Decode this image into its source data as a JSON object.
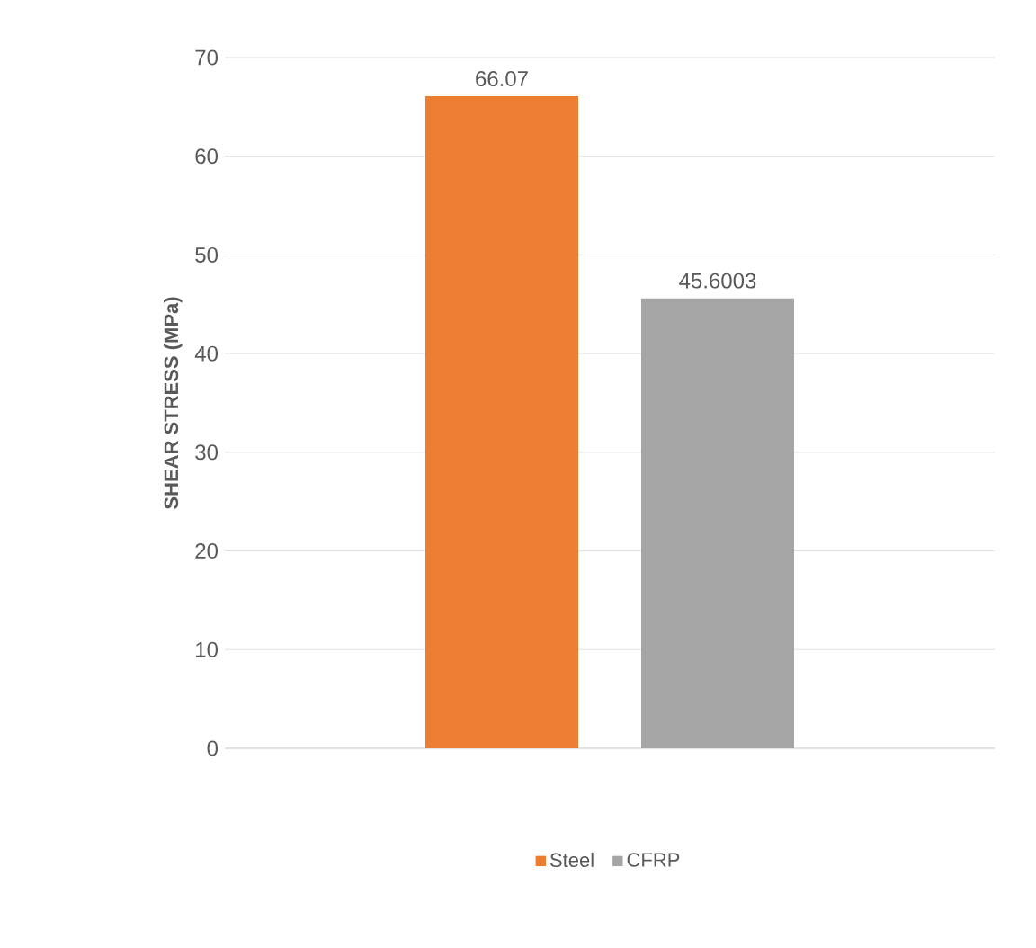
{
  "chart_data": {
    "type": "bar",
    "ylabel": "SHEAR STRESS (MPa)",
    "categories": [
      null
    ],
    "series": [
      {
        "name": "Steel",
        "color": "#ed7d31",
        "values": [
          66.07
        ]
      },
      {
        "name": "CFRP",
        "color": "#a5a5a5",
        "values": [
          45.6003
        ]
      }
    ],
    "ylim": [
      0,
      70
    ],
    "yticks": [
      0,
      10,
      20,
      30,
      40,
      50,
      60,
      70
    ],
    "grid": "y",
    "legend": "bottom",
    "data_labels": true
  }
}
